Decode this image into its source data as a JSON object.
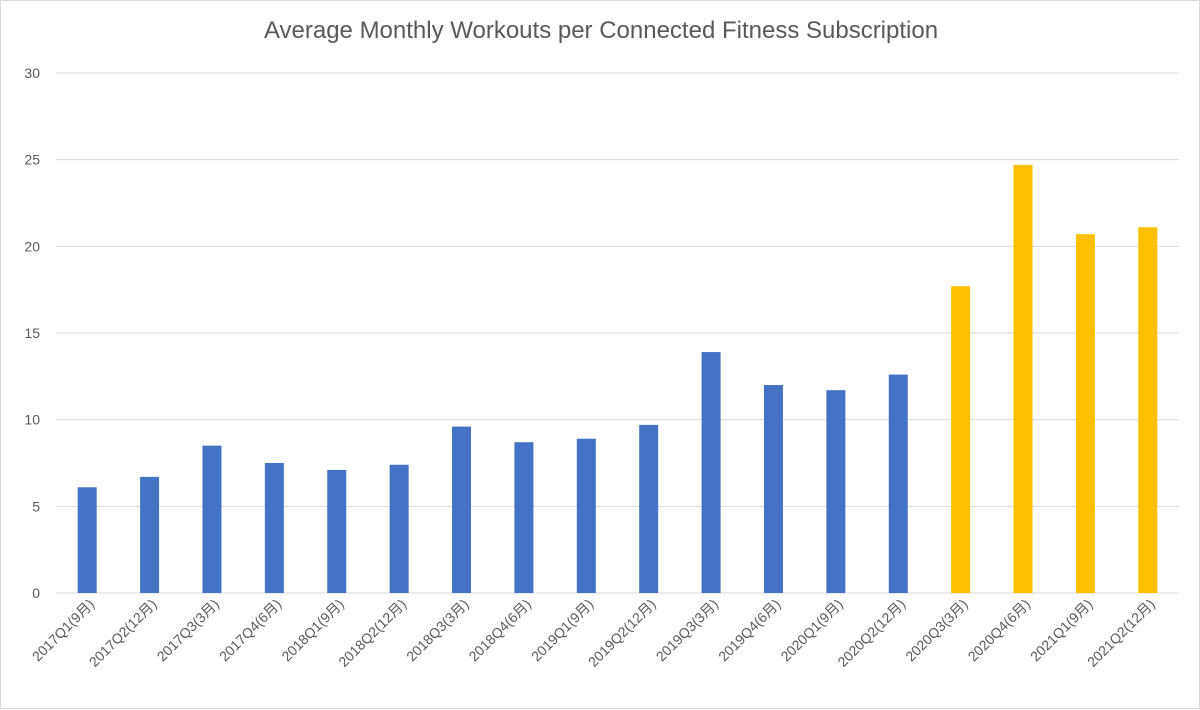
{
  "chart_data": {
    "type": "bar",
    "title": "Average Monthly Workouts per Connected Fitness Subscription",
    "xlabel": "",
    "ylabel": "",
    "ylim": [
      0,
      30
    ],
    "yticks": [
      0,
      5,
      10,
      15,
      20,
      25,
      30
    ],
    "grid": true,
    "legend": "none",
    "categories": [
      "2017Q1(9月)",
      "2017Q2(12月)",
      "2017Q3(3月)",
      "2017Q4(6月)",
      "2018Q1(9月)",
      "2018Q2(12月)",
      "2018Q3(3月)",
      "2018Q4(6月)",
      "2019Q1(9月)",
      "2019Q2(12月)",
      "2019Q3(3月)",
      "2019Q4(6月)",
      "2020Q1(9月)",
      "2020Q2(12月)",
      "2020Q3(3月)",
      "2020Q4(6月)",
      "2021Q1(9月)",
      "2021Q2(12月)"
    ],
    "values": [
      6.1,
      6.7,
      8.5,
      7.5,
      7.1,
      7.4,
      9.6,
      8.7,
      8.9,
      9.7,
      13.9,
      12.0,
      11.7,
      12.6,
      17.7,
      24.7,
      20.7,
      21.1
    ],
    "bar_colors": [
      "#4472C4",
      "#4472C4",
      "#4472C4",
      "#4472C4",
      "#4472C4",
      "#4472C4",
      "#4472C4",
      "#4472C4",
      "#4472C4",
      "#4472C4",
      "#4472C4",
      "#4472C4",
      "#4472C4",
      "#4472C4",
      "#FFC000",
      "#FFC000",
      "#FFC000",
      "#FFC000"
    ],
    "grid_color": "#d9d9d9",
    "text_color": "#595959"
  }
}
